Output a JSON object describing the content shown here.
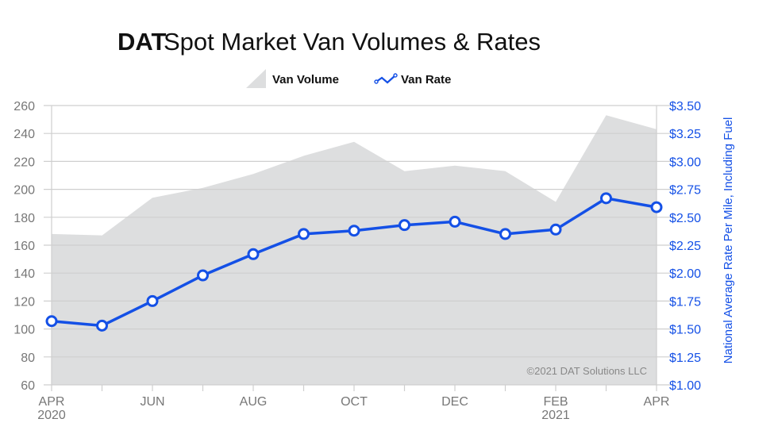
{
  "chart_data": {
    "type": "area+line",
    "title_brand": "DAT",
    "title": "Spot Market Van Volumes & Rates",
    "legend": [
      {
        "name": "Van Volume",
        "type": "area",
        "color": "#dddedf"
      },
      {
        "name": "Van Rate",
        "type": "line",
        "color": "#1450e6"
      }
    ],
    "legend_position": "top-center",
    "x_labels": [
      "APR|2020",
      "",
      "JUN",
      "",
      "AUG",
      "",
      "OCT",
      "",
      "DEC",
      "",
      "FEB|2021",
      "",
      "APR"
    ],
    "series": [
      {
        "name": "Van Volume",
        "axis": "left",
        "values": [
          168,
          167,
          194,
          201,
          211,
          224,
          234,
          213,
          217,
          213,
          191,
          253,
          243
        ]
      },
      {
        "name": "Van Rate",
        "axis": "right",
        "values": [
          1.57,
          1.53,
          1.75,
          1.98,
          2.17,
          2.35,
          2.38,
          2.43,
          2.46,
          2.35,
          2.39,
          2.67,
          2.59
        ]
      }
    ],
    "y_left": {
      "min": 60,
      "max": 260,
      "ticks": [
        "60",
        "80",
        "100",
        "120",
        "140",
        "160",
        "180",
        "200",
        "220",
        "240",
        "260"
      ]
    },
    "y_right": {
      "min": 1.0,
      "max": 3.5,
      "ticks": [
        "$1.00",
        "$1.25",
        "$1.50",
        "$1.75",
        "$2.00",
        "$2.25",
        "$2.50",
        "$2.75",
        "$3.00",
        "$3.25",
        "$3.50"
      ],
      "label": "National Average Rate Per Mile, Including Fuel"
    },
    "grid": true,
    "credit": "©2021 DAT Solutions LLC",
    "colors": {
      "area": "#dddedf",
      "line": "#1450e6",
      "grid": "#cfcfcf",
      "axis_text": "#777777"
    }
  }
}
